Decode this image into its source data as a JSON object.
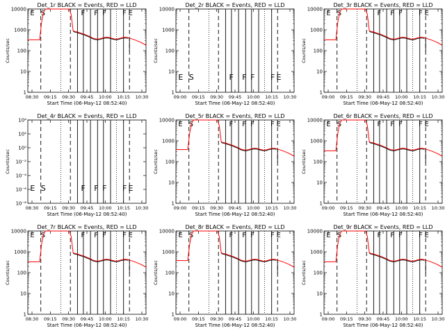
{
  "chart_data": [
    {
      "type": "line",
      "title": "Det_1r BLACK = Events, RED = LLD",
      "xlabel": "Start Time (06-May-12 08:52:40)",
      "ylabel": "Counts/sec",
      "x_ticks": [
        "08:30",
        "09:15",
        "09:30",
        "09:45",
        "10:00",
        "10:15",
        "10:30"
      ],
      "y_ticks": [
        "1",
        "10",
        "100",
        "1000",
        "10000"
      ],
      "ylim": [
        1,
        10000
      ],
      "yscale": "log",
      "series": [],
      "markers": [
        "E",
        "S",
        "F",
        "F",
        "F",
        "F",
        "E"
      ],
      "shape": "A"
    },
    {
      "type": "line",
      "title": "Det_2r BLACK = Events, RED = LLD",
      "xlabel": "Start Time (06-May-12 08:52:40)",
      "ylabel": "Counts/sec",
      "x_ticks": [
        "09:00",
        "09:15",
        "09:30",
        "09:45",
        "10:00",
        "10:15",
        "10:30"
      ],
      "y_ticks": [
        "1",
        "10",
        "100",
        "1000",
        "10000"
      ],
      "ylim": [
        1,
        10000
      ],
      "yscale": "log",
      "series": [],
      "markers": [
        "E",
        "S",
        "F",
        "F",
        "F",
        "F",
        "E"
      ],
      "shape": "empty"
    },
    {
      "type": "line",
      "title": "Det_3r BLACK = Events, RED = LLD",
      "xlabel": "Start Time (06-May-12 08:52:40)",
      "ylabel": "Counts/sec",
      "x_ticks": [
        "09:00",
        "09:15",
        "09:30",
        "09:45",
        "10:00",
        "10:15",
        "10:30"
      ],
      "y_ticks": [
        "1",
        "10",
        "100",
        "1000",
        "10000"
      ],
      "ylim": [
        1,
        10000
      ],
      "yscale": "log",
      "series": [],
      "markers": [
        "E",
        "S",
        "F",
        "F",
        "F",
        "F",
        "E"
      ],
      "shape": "A"
    },
    {
      "type": "line",
      "title": "Det_4r BLACK = Events, RED = LLD",
      "xlabel": "Start Time (06-May-12 08:52:40)",
      "ylabel": "Counts/sec",
      "x_ticks": [
        "08:30",
        "09:15",
        "09:30",
        "09:45",
        "10:00",
        "10:15",
        "10:30"
      ],
      "y_ticks": [
        "10⁻⁸",
        "10⁻⁶",
        "10⁻⁴",
        "10⁻²",
        "10⁰",
        "10²",
        "10⁴"
      ],
      "ylim": [
        1e-08,
        10000
      ],
      "yscale": "log",
      "series": [],
      "markers": [
        "E",
        "S",
        "F",
        "F",
        "F",
        "F",
        "E"
      ],
      "shape": "empty"
    },
    {
      "type": "line",
      "title": "Det_5r BLACK = Events, RED = LLD",
      "xlabel": "Start Time (06-May-12 08:52:40)",
      "ylabel": "Counts/sec",
      "x_ticks": [
        "09:00",
        "09:15",
        "09:30",
        "09:45",
        "10:00",
        "10:15",
        "10:30"
      ],
      "y_ticks": [
        "1",
        "10",
        "100",
        "1000",
        "10000"
      ],
      "ylim": [
        1,
        10000
      ],
      "yscale": "log",
      "series": [],
      "markers": [
        "E",
        "S",
        "F",
        "F",
        "F",
        "F",
        "E"
      ],
      "shape": "B"
    },
    {
      "type": "line",
      "title": "Det_6r BLACK = Events, RED = LLD",
      "xlabel": "Start Time (06-May-12 08:52:40)",
      "ylabel": "Counts/sec",
      "x_ticks": [
        "09:00",
        "09:15",
        "09:30",
        "09:45",
        "10:00",
        "10:15",
        "10:30"
      ],
      "y_ticks": [
        "1",
        "10",
        "100",
        "1000",
        "10000"
      ],
      "ylim": [
        1,
        10000
      ],
      "yscale": "log",
      "series": [],
      "markers": [
        "E",
        "S",
        "F",
        "F",
        "F",
        "F",
        "E"
      ],
      "shape": "A"
    },
    {
      "type": "line",
      "title": "Det_7r BLACK = Events, RED = LLD",
      "xlabel": "Start Time (06-May-12 08:52:40)",
      "ylabel": "Counts/sec",
      "x_ticks": [
        "08:30",
        "09:15",
        "09:30",
        "09:45",
        "10:00",
        "10:15",
        "10:30"
      ],
      "y_ticks": [
        "1",
        "10",
        "100",
        "1000",
        "10000"
      ],
      "ylim": [
        1,
        10000
      ],
      "yscale": "log",
      "series": [],
      "markers": [
        "E",
        "S",
        "F",
        "F",
        "F",
        "F",
        "E"
      ],
      "shape": "A"
    },
    {
      "type": "line",
      "title": "Det_8r BLACK = Events, RED = LLD",
      "xlabel": "Start Time (06-May-12 08:52:40)",
      "ylabel": "Counts/sec",
      "x_ticks": [
        "09:00",
        "09:15",
        "09:30",
        "09:45",
        "10:00",
        "10:15",
        "10:30"
      ],
      "y_ticks": [
        "1",
        "10",
        "100",
        "1000",
        "10000"
      ],
      "ylim": [
        1,
        10000
      ],
      "yscale": "log",
      "series": [],
      "markers": [
        "E",
        "S",
        "F",
        "F",
        "F",
        "F",
        "E"
      ],
      "shape": "B"
    },
    {
      "type": "line",
      "title": "Det_9r BLACK = Events, RED = LLD",
      "xlabel": "Start Time (06-May-12 08:52:40)",
      "ylabel": "Counts/sec",
      "x_ticks": [
        "09:00",
        "09:15",
        "09:30",
        "09:45",
        "10:00",
        "10:15",
        "10:30"
      ],
      "y_ticks": [
        "1",
        "10",
        "100",
        "1000",
        "10000"
      ],
      "ylim": [
        1,
        10000
      ],
      "yscale": "log",
      "series": [],
      "markers": [
        "E",
        "S",
        "F",
        "F",
        "F",
        "F",
        "E"
      ],
      "shape": "A"
    }
  ],
  "colors": {
    "events": "#000000",
    "lld": "#ff0000",
    "axis": "#000000",
    "background": "#ffffff"
  }
}
